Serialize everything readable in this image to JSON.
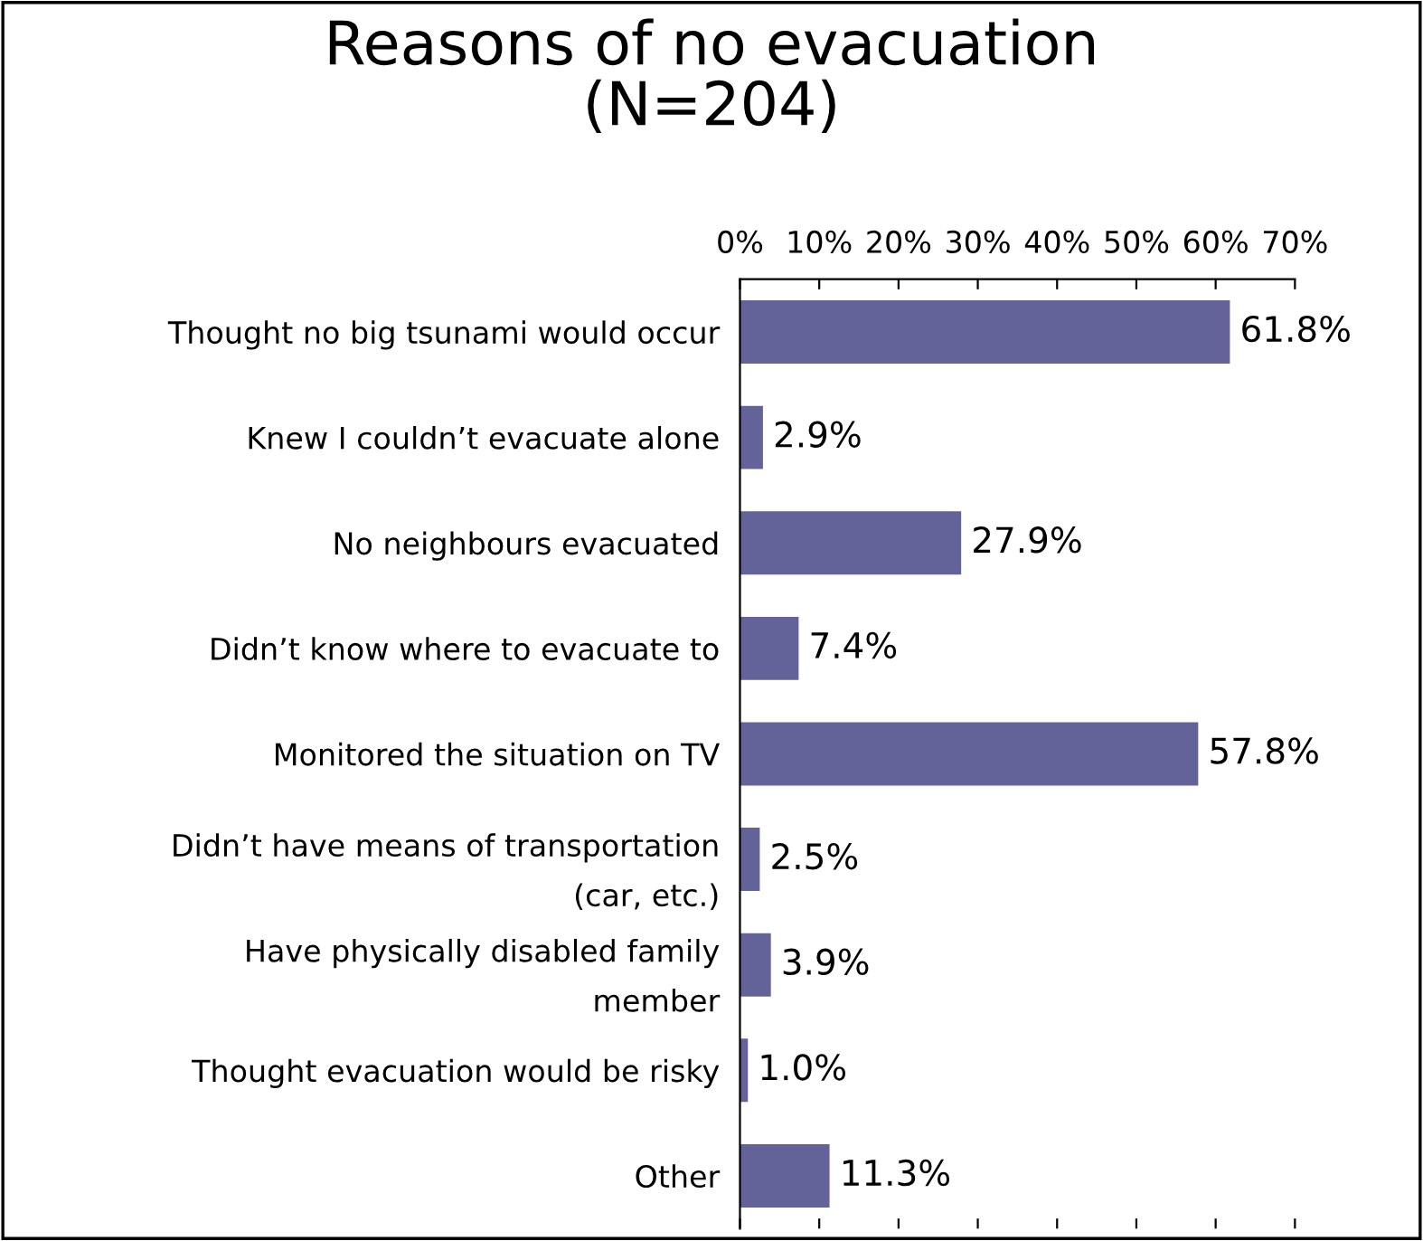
{
  "chart_data": {
    "type": "bar",
    "orientation": "horizontal",
    "title": "Reasons of no evacuation\n(N=204)",
    "categories": [
      "Thought no big tsunami would occur",
      "Knew I couldn’t evacuate alone",
      "No neighbours evacuated",
      "Didn’t know where to evacuate to",
      "Monitored the situation on TV",
      "Didn’t have means of transportation\n(car, etc.)",
      "Have physically disabled family\nmember",
      "Thought evacuation would be risky",
      "Other"
    ],
    "values": [
      61.8,
      2.9,
      27.9,
      7.4,
      57.8,
      2.5,
      3.9,
      1.0,
      11.3
    ],
    "value_labels": [
      "61.8%",
      "2.9%",
      "27.9%",
      "7.4%",
      "57.8%",
      "2.5%",
      "3.9%",
      "1.0%",
      "11.3%"
    ],
    "color": "#636399",
    "xlim": [
      0,
      70
    ],
    "xticks": [
      {
        "value": 0,
        "label": "0%"
      },
      {
        "value": 10,
        "label": "10%"
      },
      {
        "value": 20,
        "label": "20%"
      },
      {
        "value": 30,
        "label": "30%"
      },
      {
        "value": 40,
        "label": "40%"
      },
      {
        "value": 50,
        "label": "50%"
      },
      {
        "value": 60,
        "label": "60%"
      },
      {
        "value": 70,
        "label": "70%"
      }
    ],
    "grid": false,
    "legend": false
  }
}
